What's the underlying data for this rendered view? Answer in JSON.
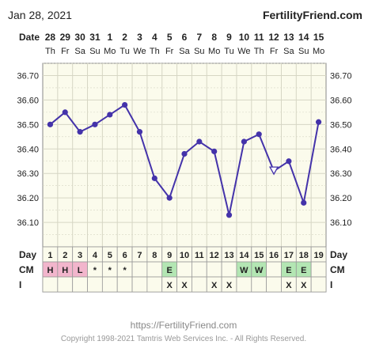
{
  "header": {
    "date": "Jan 28, 2021",
    "brand": "FertilityFriend.com",
    "date_row_label": "Date"
  },
  "chart_data": {
    "type": "line",
    "title": "",
    "xlabel": "",
    "ylabel": "",
    "dates": [
      "28",
      "29",
      "30",
      "31",
      "1",
      "2",
      "3",
      "4",
      "5",
      "6",
      "7",
      "8",
      "9",
      "10",
      "11",
      "12",
      "13",
      "14",
      "15"
    ],
    "weekdays": [
      "Th",
      "Fr",
      "Sa",
      "Su",
      "Mo",
      "Tu",
      "We",
      "Th",
      "Fr",
      "Sa",
      "Su",
      "Mo",
      "Tu",
      "We",
      "Th",
      "Fr",
      "Sa",
      "Su",
      "Mo"
    ],
    "days": [
      "1",
      "2",
      "3",
      "4",
      "5",
      "6",
      "7",
      "8",
      "9",
      "10",
      "11",
      "12",
      "13",
      "14",
      "15",
      "16",
      "17",
      "18",
      "19"
    ],
    "y_ticks": [
      "36.70",
      "36.60",
      "36.50",
      "36.40",
      "36.30",
      "36.20",
      "36.10"
    ],
    "ylim": [
      36.0,
      36.75
    ],
    "temperatures": [
      36.5,
      36.55,
      36.47,
      36.5,
      36.54,
      36.58,
      36.47,
      36.28,
      36.2,
      36.38,
      36.43,
      36.39,
      36.13,
      36.43,
      36.46,
      36.31,
      36.35,
      36.18,
      36.51
    ],
    "open_marker_days": [
      16
    ],
    "grid": true,
    "rows": {
      "day_label": "Day",
      "cm_label": "CM",
      "i_label": "I",
      "cm": [
        "H",
        "H",
        "L",
        "*",
        "*",
        "*",
        "",
        "",
        "E",
        "",
        "",
        "",
        "",
        "W",
        "W",
        "",
        "E",
        "E",
        ""
      ],
      "i": [
        "",
        "",
        "",
        "",
        "",
        "",
        "",
        "",
        "X",
        "X",
        "",
        "X",
        "X",
        "",
        "",
        "",
        "X",
        "X",
        ""
      ]
    },
    "colors": {
      "line": "#4433aa",
      "plot_bg": "#fbfbec",
      "grid": "#d6d6c4",
      "cm_hl": "#f2b5cc",
      "cm_ew": "#b3e6b3",
      "axis_text": "#222222"
    }
  },
  "footer": {
    "url": "https://FertilityFriend.com",
    "copyright": "Copyright 1998-2021 Tamtris Web Services Inc. - All Rights Reserved."
  }
}
